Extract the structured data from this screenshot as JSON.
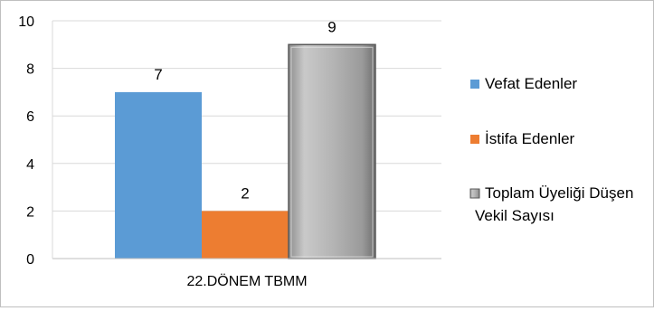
{
  "chart_data": {
    "type": "bar",
    "categories": [
      "22.DÖNEM TBMM"
    ],
    "series": [
      {
        "name": "Vefat Edenler",
        "values": [
          7
        ],
        "color": "#5b9bd5"
      },
      {
        "name": "İstifa Edenler",
        "values": [
          2
        ],
        "color": "#ed7d31"
      },
      {
        "name": "Toplam Üyeliği Düşen Vekil Sayısı",
        "values": [
          9
        ],
        "color": "#a5a5a5"
      }
    ],
    "data_labels": [
      "7",
      "2",
      "9"
    ],
    "ylim": [
      0,
      10
    ],
    "yticks": [
      0,
      2,
      4,
      6,
      8,
      10
    ],
    "grid": true,
    "legend_position": "right",
    "title": "",
    "xlabel": "",
    "ylabel": ""
  }
}
